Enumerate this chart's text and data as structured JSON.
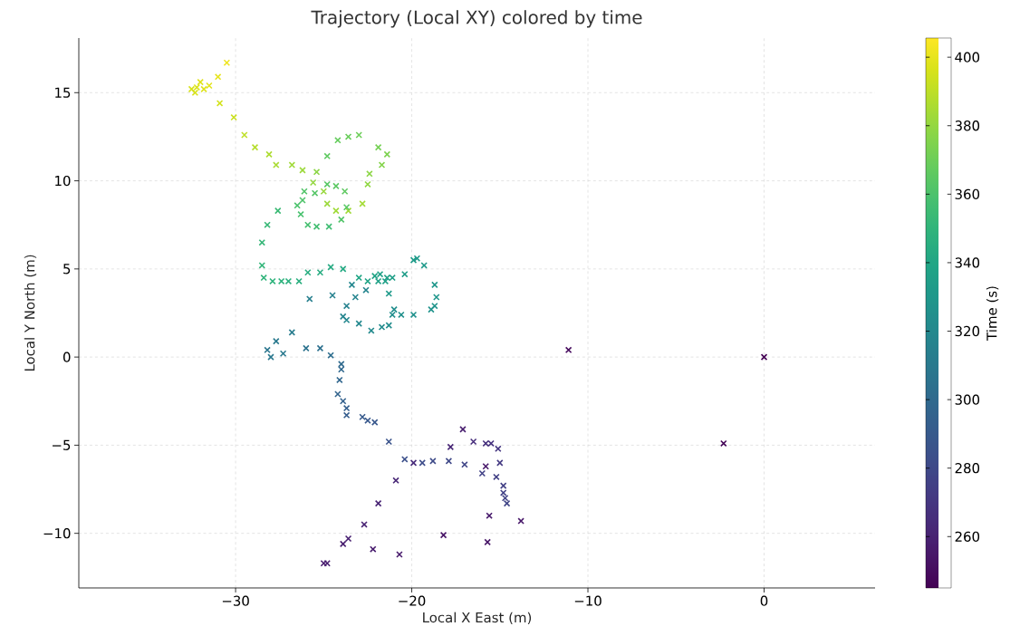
{
  "chart_data": {
    "type": "scatter",
    "title": "Trajectory (Local XY) colored by time",
    "xlabel": "Local X East (m)",
    "ylabel": "Local Y North (m)",
    "clabel": "Time (s)",
    "marker": "cross",
    "grid": true,
    "xlim": [
      -38.9,
      6.3
    ],
    "ylim": [
      -13.1,
      18.1
    ],
    "xticks": [
      {
        "value": -30,
        "label": "−30"
      },
      {
        "value": -20,
        "label": "−20"
      },
      {
        "value": -10,
        "label": "−10"
      },
      0
    ],
    "yticks": [
      {
        "value": -10,
        "label": "−10"
      },
      {
        "value": -5,
        "label": "−5"
      },
      0,
      5,
      10,
      15
    ],
    "clim": [
      245,
      405.6
    ],
    "cticks": [
      260,
      280,
      300,
      320,
      340,
      360,
      380,
      400
    ],
    "x": [
      -30.5,
      -31.0,
      -31.5,
      -32.0,
      -32.2,
      -31.8,
      -32.5,
      -32.3,
      -30.9,
      -30.1,
      -29.5,
      -28.9,
      -28.1,
      -27.7,
      -26.8,
      -26.2,
      -25.4,
      -25.6,
      -25.0,
      -24.8,
      -24.3,
      -23.6,
      -22.8,
      -22.5,
      -22.4,
      -21.7,
      -21.4,
      -21.9,
      -23.0,
      -23.6,
      -24.2,
      -24.8,
      -23.8,
      -24.3,
      -24.8,
      -25.5,
      -26.1,
      -26.2,
      -26.5,
      -26.3,
      -25.9,
      -25.4,
      -24.7,
      -24.0,
      -23.7,
      -27.6,
      -28.2,
      -28.5,
      -28.5,
      -28.4,
      -27.9,
      -27.4,
      -27.0,
      -26.4,
      -25.9,
      -25.2,
      -24.6,
      -23.9,
      -23.0,
      -22.5,
      -22.1,
      -21.8,
      -21.4,
      -21.1,
      -20.4,
      -19.9,
      -19.7,
      -19.3,
      -18.7,
      -18.6,
      -18.7,
      -18.9,
      -19.9,
      -20.6,
      -21.0,
      -21.1,
      -21.3,
      -21.7,
      -22.3,
      -23.0,
      -23.7,
      -23.9,
      -21.3,
      -21.5,
      -21.9,
      -22.6,
      -23.2,
      -23.7,
      -23.4,
      -24.5,
      -25.8,
      -26.8,
      -27.7,
      -28.2,
      -28.0,
      -27.3,
      -26.0,
      -25.2,
      -24.6,
      -24.0,
      -24.0,
      -24.1,
      -24.2,
      -23.9,
      -23.7,
      -23.7,
      -22.8,
      -22.5,
      -22.1,
      -21.3,
      -20.4,
      -19.9,
      -19.4,
      -18.8,
      -17.9,
      -17.0,
      -16.0,
      -15.8,
      -15.2,
      -15.0,
      -15.1,
      -15.5,
      -15.8,
      -16.5,
      -17.8,
      -17.1,
      -14.8,
      -14.8,
      -14.7,
      -14.6,
      -15.6,
      -13.8,
      -15.7,
      -18.2,
      -20.9,
      -21.9,
      -22.7,
      -23.6,
      -23.9,
      -22.2,
      -20.7,
      -24.8,
      -25.0,
      0,
      -2.3,
      -11.1
    ],
    "values": [
      16.7,
      15.9,
      15.4,
      15.6,
      15.3,
      15.2,
      15.2,
      15.0,
      14.4,
      13.6,
      12.6,
      11.9,
      11.5,
      10.9,
      10.9,
      10.6,
      10.5,
      9.9,
      9.4,
      8.7,
      8.3,
      8.3,
      8.7,
      9.8,
      10.4,
      10.9,
      11.5,
      11.9,
      12.6,
      12.5,
      12.3,
      11.4,
      9.4,
      9.7,
      9.8,
      9.3,
      9.4,
      8.9,
      8.6,
      8.1,
      7.5,
      7.4,
      7.4,
      7.8,
      8.5,
      8.3,
      7.5,
      6.5,
      5.2,
      4.5,
      4.3,
      4.3,
      4.3,
      4.3,
      4.8,
      4.8,
      5.1,
      5.0,
      4.5,
      4.3,
      4.6,
      4.7,
      4.5,
      4.5,
      4.7,
      5.5,
      5.6,
      5.2,
      4.1,
      3.4,
      2.9,
      2.7,
      2.4,
      2.4,
      2.7,
      2.4,
      1.8,
      1.7,
      1.5,
      1.9,
      2.1,
      2.3,
      3.6,
      4.3,
      4.3,
      3.8,
      3.4,
      2.9,
      4.1,
      3.5,
      3.3,
      1.4,
      0.9,
      0.4,
      0.0,
      0.2,
      0.5,
      0.5,
      0.1,
      -0.4,
      -0.7,
      -1.3,
      -2.1,
      -2.5,
      -2.9,
      -3.3,
      -3.4,
      -3.6,
      -3.7,
      -4.8,
      -5.8,
      -6.0,
      -6.0,
      -5.9,
      -5.9,
      -6.1,
      -6.6,
      -6.2,
      -6.8,
      -6.0,
      -5.2,
      -4.9,
      -4.9,
      -4.8,
      -5.1,
      -4.1,
      -7.3,
      -7.7,
      -8.0,
      -8.3,
      -9.0,
      -9.3,
      -10.5,
      -10.1,
      -7.0,
      -8.3,
      -9.5,
      -10.3,
      -10.6,
      -10.9,
      -11.2,
      -11.7,
      -11.7,
      0.0,
      -4.9,
      0.4
    ],
    "cvalues": [
      402,
      400,
      399,
      398,
      397,
      398,
      396,
      396,
      395,
      393,
      390,
      388,
      386,
      385,
      383,
      382,
      378,
      380,
      381,
      382,
      383,
      383,
      384,
      379,
      378,
      376,
      374,
      372,
      370,
      369,
      368,
      366,
      366,
      365,
      364,
      363,
      362,
      361,
      360,
      359,
      358,
      357,
      356,
      362,
      364,
      354,
      353,
      352,
      351,
      350,
      349,
      348,
      347,
      346,
      345,
      344,
      343,
      342,
      340,
      339,
      338,
      337,
      336,
      335,
      334,
      333,
      332,
      331,
      330,
      329,
      328,
      327,
      326,
      325,
      324,
      324,
      323,
      322,
      321,
      320,
      319,
      318,
      332,
      336,
      337,
      318,
      317,
      316,
      319,
      315,
      314,
      312,
      310,
      308,
      309,
      310,
      305,
      304,
      302,
      300,
      299,
      298,
      296,
      294,
      293,
      292,
      290,
      289,
      288,
      286,
      284,
      264,
      282,
      281,
      280,
      278,
      276,
      255,
      275,
      272,
      270,
      268,
      267,
      266,
      262,
      258,
      275,
      276,
      277,
      278,
      256,
      255,
      254,
      253,
      262,
      261,
      260,
      259,
      258,
      257,
      256,
      258,
      257,
      245,
      247,
      249
    ]
  }
}
